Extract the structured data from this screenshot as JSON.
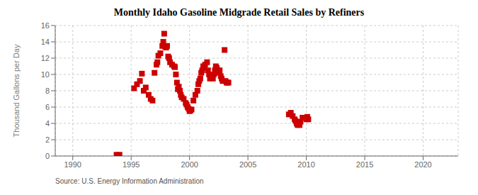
{
  "chart_data": {
    "type": "scatter",
    "title": "Monthly Idaho Gasoline Midgrade Retail Sales by Refiners",
    "ylabel": "Thousand Gallons per Day",
    "source": "Source: U.S. Energy Information Administration",
    "color": "#cc0000",
    "marker": "square",
    "grid": true,
    "xlim": [
      1988.5,
      2023
    ],
    "ylim": [
      0,
      16
    ],
    "xticks": [
      1990,
      1995,
      2000,
      2005,
      2010,
      2015,
      2020
    ],
    "yticks": [
      0,
      2,
      4,
      6,
      8,
      10,
      12,
      14,
      16
    ],
    "x": [
      1993.75,
      1994.0,
      1995.25,
      1995.5,
      1995.75,
      1995.92,
      1996.08,
      1996.25,
      1996.5,
      1996.67,
      1996.83,
      1997.0,
      1997.17,
      1997.25,
      1997.33,
      1997.5,
      1997.67,
      1997.75,
      1997.83,
      1997.92,
      1998.0,
      1998.08,
      1998.17,
      1998.25,
      1998.33,
      1998.5,
      1998.67,
      1998.75,
      1998.83,
      1998.92,
      1999.0,
      1999.08,
      1999.17,
      1999.25,
      1999.33,
      1999.5,
      1999.67,
      1999.75,
      1999.83,
      1999.92,
      2000.0,
      2000.08,
      2000.17,
      2000.33,
      2000.5,
      2000.67,
      2000.75,
      2000.83,
      2000.92,
      2001.0,
      2001.08,
      2001.17,
      2001.25,
      2001.33,
      2001.5,
      2001.58,
      2001.67,
      2001.75,
      2001.83,
      2001.92,
      2002.0,
      2002.08,
      2002.17,
      2002.25,
      2002.33,
      2002.42,
      2002.5,
      2002.58,
      2002.67,
      2002.75,
      2002.83,
      2003.0,
      2003.08,
      2003.17,
      2003.25,
      2003.33,
      2008.5,
      2008.67,
      2008.83,
      2009.0,
      2009.08,
      2009.17,
      2009.25,
      2009.42,
      2009.5,
      2009.67,
      2010.0,
      2010.08,
      2010.17
    ],
    "values": [
      0.15,
      0.15,
      8.3,
      8.8,
      9.2,
      10.1,
      8.0,
      8.4,
      7.5,
      7.0,
      6.8,
      10.2,
      11.2,
      11.5,
      12.3,
      12.6,
      13.5,
      14.0,
      15.0,
      13.4,
      13.3,
      13.5,
      12.2,
      12.0,
      11.5,
      11.2,
      11.0,
      10.9,
      10.0,
      9.0,
      8.2,
      8.5,
      8.0,
      7.5,
      7.2,
      7.0,
      6.5,
      6.3,
      6.0,
      5.8,
      5.5,
      5.6,
      5.7,
      6.8,
      7.5,
      8.0,
      8.8,
      9.2,
      9.5,
      10.2,
      10.5,
      11.0,
      10.8,
      11.2,
      11.5,
      10.5,
      10.0,
      9.5,
      9.8,
      10.0,
      9.5,
      10.0,
      10.5,
      11.0,
      10.8,
      10.5,
      10.2,
      10.5,
      9.8,
      9.5,
      9.2,
      13.0,
      9.2,
      9.0,
      9.0,
      9.0,
      5.1,
      5.3,
      4.9,
      4.5,
      4.3,
      4.0,
      3.8,
      3.8,
      4.2,
      4.7,
      4.5,
      4.8,
      4.5
    ]
  }
}
